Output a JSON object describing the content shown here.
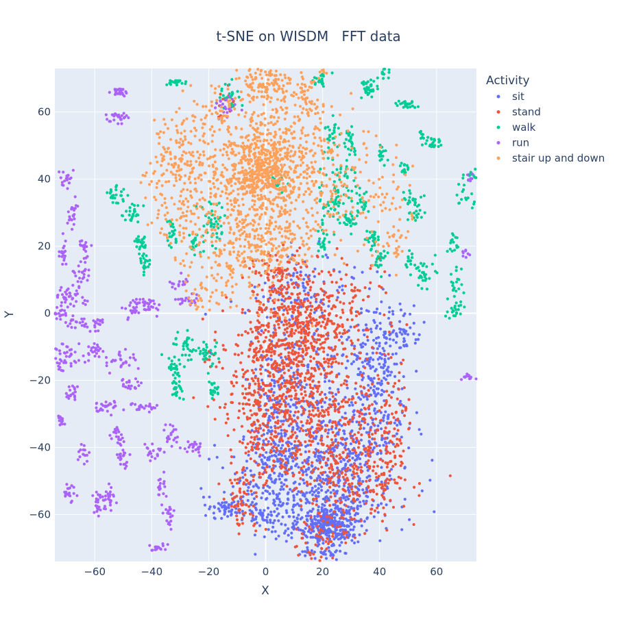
{
  "chart_data": {
    "type": "scatter",
    "title": "t-SNE on WISDM   FFT data",
    "xlabel": "X",
    "ylabel": "Y",
    "xlim": [
      -74,
      74
    ],
    "ylim": [
      -74,
      73
    ],
    "xticks": [
      -60,
      -40,
      -20,
      0,
      20,
      40,
      60
    ],
    "yticks": [
      -60,
      -40,
      -20,
      0,
      20,
      40,
      60
    ],
    "grid": true,
    "legend_title": "Activity",
    "legend_position": "right",
    "series": [
      {
        "name": "sit",
        "color": "#636efa",
        "clusters": [
          {
            "cx": 22,
            "cy": -63,
            "sx": 5,
            "sy": 3,
            "n": 320
          },
          {
            "cx": 18,
            "cy": -52,
            "sx": 14,
            "sy": 8,
            "n": 420
          },
          {
            "cx": 30,
            "cy": -40,
            "sx": 8,
            "sy": 10,
            "n": 180
          },
          {
            "cx": 40,
            "cy": -28,
            "sx": 5,
            "sy": 12,
            "n": 150
          },
          {
            "cx": 38,
            "cy": -10,
            "sx": 5,
            "sy": 10,
            "n": 110
          },
          {
            "cx": 48,
            "cy": -5,
            "sx": 4,
            "sy": 3,
            "n": 45
          },
          {
            "cx": -14,
            "cy": -58,
            "sx": 4,
            "sy": 2,
            "n": 60
          },
          {
            "cx": 5,
            "cy": -30,
            "sx": 6,
            "sy": 10,
            "n": 160
          },
          {
            "cx": 12,
            "cy": 5,
            "sx": 8,
            "sy": 6,
            "n": 110
          },
          {
            "cx": 2,
            "cy": -48,
            "sx": 5,
            "sy": 8,
            "n": 90
          },
          {
            "cx": 15,
            "cy": -25,
            "sx": 10,
            "sy": 18,
            "n": 180
          },
          {
            "cx": -2,
            "cy": -60,
            "sx": 2,
            "sy": 2,
            "n": 20
          },
          {
            "cx": 20,
            "cy": -72,
            "sx": 5,
            "sy": 1,
            "n": 30
          }
        ]
      },
      {
        "name": "stand",
        "color": "#ef553b",
        "clusters": [
          {
            "cx": 5,
            "cy": -15,
            "sx": 10,
            "sy": 10,
            "n": 520
          },
          {
            "cx": 18,
            "cy": 0,
            "sx": 10,
            "sy": 8,
            "n": 320
          },
          {
            "cx": 20,
            "cy": -35,
            "sx": 12,
            "sy": 10,
            "n": 430
          },
          {
            "cx": 35,
            "cy": -50,
            "sx": 8,
            "sy": 6,
            "n": 150
          },
          {
            "cx": 45,
            "cy": -35,
            "sx": 3,
            "sy": 8,
            "n": 60
          },
          {
            "cx": -8,
            "cy": -55,
            "sx": 3,
            "sy": 5,
            "n": 60
          },
          {
            "cx": 5,
            "cy": 10,
            "sx": 5,
            "sy": 4,
            "n": 90
          },
          {
            "cx": 20,
            "cy": -65,
            "sx": 5,
            "sy": 5,
            "n": 60
          },
          {
            "cx": -3,
            "cy": -35,
            "sx": 4,
            "sy": 8,
            "n": 100
          },
          {
            "cx": -14,
            "cy": 64,
            "sx": 2,
            "sy": 2,
            "n": 15
          }
        ]
      },
      {
        "name": "walk",
        "color": "#00cc96",
        "clusters": [
          {
            "cx": -32,
            "cy": 69,
            "sx": 1.5,
            "sy": 0.6,
            "n": 20
          },
          {
            "cx": -13,
            "cy": 65,
            "sx": 2,
            "sy": 2,
            "n": 25
          },
          {
            "cx": 20,
            "cy": 70,
            "sx": 1.5,
            "sy": 1,
            "n": 20
          },
          {
            "cx": 36,
            "cy": 67,
            "sx": 1.5,
            "sy": 1.5,
            "n": 30
          },
          {
            "cx": 42,
            "cy": 72,
            "sx": 1,
            "sy": 1.5,
            "n": 18
          },
          {
            "cx": 50,
            "cy": 62,
            "sx": 2,
            "sy": 0.6,
            "n": 22
          },
          {
            "cx": 59,
            "cy": 51,
            "sx": 2,
            "sy": 0.8,
            "n": 20
          },
          {
            "cx": 55,
            "cy": 53,
            "sx": 1,
            "sy": 1.5,
            "n": 10
          },
          {
            "cx": 41,
            "cy": 48,
            "sx": 1,
            "sy": 1.5,
            "n": 15
          },
          {
            "cx": 30,
            "cy": 51,
            "sx": 1,
            "sy": 2,
            "n": 25
          },
          {
            "cx": 23,
            "cy": 53,
            "sx": 1.5,
            "sy": 2,
            "n": 25
          },
          {
            "cx": 49,
            "cy": 43,
            "sx": 1,
            "sy": 1,
            "n": 15
          },
          {
            "cx": 51,
            "cy": 34,
            "sx": 2,
            "sy": 1,
            "n": 20
          },
          {
            "cx": 52,
            "cy": 30,
            "sx": 2,
            "sy": 1,
            "n": 15
          },
          {
            "cx": 23,
            "cy": 32,
            "sx": 3,
            "sy": 4,
            "n": 50
          },
          {
            "cx": 28,
            "cy": 40,
            "sx": 3,
            "sy": 4,
            "n": 30
          },
          {
            "cx": 34,
            "cy": 33,
            "sx": 1.5,
            "sy": 2,
            "n": 20
          },
          {
            "cx": 30,
            "cy": 28,
            "sx": 2,
            "sy": 1,
            "n": 25
          },
          {
            "cx": 37,
            "cy": 22,
            "sx": 1,
            "sy": 2,
            "n": 25
          },
          {
            "cx": 20,
            "cy": 21,
            "sx": 1,
            "sy": 1.5,
            "n": 20
          },
          {
            "cx": 40,
            "cy": 16,
            "sx": 1.5,
            "sy": 1.5,
            "n": 20
          },
          {
            "cx": 51,
            "cy": 16,
            "sx": 1,
            "sy": 2,
            "n": 15
          },
          {
            "cx": 55,
            "cy": 12,
            "sx": 3,
            "sy": 2,
            "n": 30
          },
          {
            "cx": 66,
            "cy": 21,
            "sx": 1,
            "sy": 2,
            "n": 15
          },
          {
            "cx": 72,
            "cy": 41,
            "sx": 1.5,
            "sy": 1,
            "n": 12
          },
          {
            "cx": 70,
            "cy": 35,
            "sx": 2,
            "sy": 1.5,
            "n": 15
          },
          {
            "cx": 67,
            "cy": 6,
            "sx": 1.5,
            "sy": 3,
            "n": 25
          },
          {
            "cx": 66,
            "cy": 0,
            "sx": 1,
            "sy": 1,
            "n": 15
          },
          {
            "cx": -53,
            "cy": 35,
            "sx": 1.5,
            "sy": 1.5,
            "n": 25
          },
          {
            "cx": -47,
            "cy": 30,
            "sx": 2,
            "sy": 1.5,
            "n": 25
          },
          {
            "cx": -44,
            "cy": 21,
            "sx": 1,
            "sy": 2,
            "n": 25
          },
          {
            "cx": -42,
            "cy": 15,
            "sx": 1,
            "sy": 1.5,
            "n": 20
          },
          {
            "cx": -33,
            "cy": 24,
            "sx": 1,
            "sy": 2,
            "n": 20
          },
          {
            "cx": -25,
            "cy": 21,
            "sx": 1,
            "sy": 1.5,
            "n": 20
          },
          {
            "cx": -19,
            "cy": 28,
            "sx": 2,
            "sy": 4,
            "n": 45
          },
          {
            "cx": -27,
            "cy": -10,
            "sx": 3,
            "sy": 2,
            "n": 35
          },
          {
            "cx": -32,
            "cy": -16,
            "sx": 1.5,
            "sy": 1.5,
            "n": 25
          },
          {
            "cx": -31,
            "cy": -22,
            "sx": 1,
            "sy": 2,
            "n": 25
          },
          {
            "cx": -20,
            "cy": -12,
            "sx": 1.5,
            "sy": 2,
            "n": 25
          },
          {
            "cx": -18,
            "cy": -23,
            "sx": 1,
            "sy": 1.5,
            "n": 20
          },
          {
            "cx": 3,
            "cy": 38,
            "sx": 2,
            "sy": 2,
            "n": 20
          }
        ]
      },
      {
        "name": "run",
        "color": "#ab63fa",
        "clusters": [
          {
            "cx": -51,
            "cy": 66,
            "sx": 1.5,
            "sy": 0.6,
            "n": 25
          },
          {
            "cx": -52,
            "cy": 58,
            "sx": 2,
            "sy": 0.8,
            "n": 25
          },
          {
            "cx": -14,
            "cy": 62,
            "sx": 2,
            "sy": 2,
            "n": 20
          },
          {
            "cx": -70,
            "cy": 40,
            "sx": 1,
            "sy": 2,
            "n": 20
          },
          {
            "cx": -68,
            "cy": 29,
            "sx": 1,
            "sy": 2,
            "n": 20
          },
          {
            "cx": -71,
            "cy": 18,
            "sx": 1,
            "sy": 2,
            "n": 18
          },
          {
            "cx": -64,
            "cy": 20,
            "sx": 1,
            "sy": 2,
            "n": 20
          },
          {
            "cx": -64,
            "cy": 11,
            "sx": 2,
            "sy": 1.5,
            "n": 20
          },
          {
            "cx": -68,
            "cy": 5,
            "sx": 3,
            "sy": 2,
            "n": 40
          },
          {
            "cx": -72,
            "cy": 0,
            "sx": 1.5,
            "sy": 1,
            "n": 20
          },
          {
            "cx": -66,
            "cy": -3,
            "sx": 2,
            "sy": 1,
            "n": 20
          },
          {
            "cx": -59,
            "cy": -3,
            "sx": 1,
            "sy": 1,
            "n": 20
          },
          {
            "cx": -45,
            "cy": 1,
            "sx": 3,
            "sy": 2,
            "n": 30
          },
          {
            "cx": -42,
            "cy": 3,
            "sx": 3,
            "sy": 1,
            "n": 25
          },
          {
            "cx": -30,
            "cy": 9,
            "sx": 2,
            "sy": 1,
            "n": 15
          },
          {
            "cx": -28,
            "cy": 4,
            "sx": 2,
            "sy": 1,
            "n": 20
          },
          {
            "cx": -69,
            "cy": -11,
            "sx": 3,
            "sy": 1,
            "n": 20
          },
          {
            "cx": -70,
            "cy": -15,
            "sx": 3,
            "sy": 1,
            "n": 25
          },
          {
            "cx": -60,
            "cy": -11,
            "sx": 1.5,
            "sy": 1,
            "n": 20
          },
          {
            "cx": -51,
            "cy": -14,
            "sx": 3,
            "sy": 1.5,
            "n": 30
          },
          {
            "cx": -47,
            "cy": -21,
            "sx": 2,
            "sy": 1,
            "n": 20
          },
          {
            "cx": -68,
            "cy": -24,
            "sx": 1,
            "sy": 1.5,
            "n": 20
          },
          {
            "cx": -72,
            "cy": -32,
            "sx": 1,
            "sy": 0.8,
            "n": 15
          },
          {
            "cx": -56,
            "cy": -28,
            "sx": 2,
            "sy": 1,
            "n": 25
          },
          {
            "cx": -44,
            "cy": -28,
            "sx": 3,
            "sy": 0.8,
            "n": 25
          },
          {
            "cx": -52,
            "cy": -37,
            "sx": 1.5,
            "sy": 1.5,
            "n": 20
          },
          {
            "cx": -50,
            "cy": -43,
            "sx": 1,
            "sy": 2,
            "n": 20
          },
          {
            "cx": -40,
            "cy": -41,
            "sx": 1.5,
            "sy": 1,
            "n": 20
          },
          {
            "cx": -33,
            "cy": -36,
            "sx": 1.5,
            "sy": 2,
            "n": 20
          },
          {
            "cx": -25,
            "cy": -40,
            "sx": 1.5,
            "sy": 1,
            "n": 20
          },
          {
            "cx": -64,
            "cy": -41,
            "sx": 1,
            "sy": 1.5,
            "n": 15
          },
          {
            "cx": -69,
            "cy": -53,
            "sx": 1,
            "sy": 2,
            "n": 20
          },
          {
            "cx": -55,
            "cy": -55,
            "sx": 1.5,
            "sy": 2,
            "n": 30
          },
          {
            "cx": -59,
            "cy": -57,
            "sx": 1,
            "sy": 2,
            "n": 20
          },
          {
            "cx": -37,
            "cy": -52,
            "sx": 1,
            "sy": 1.5,
            "n": 15
          },
          {
            "cx": -34,
            "cy": -60,
            "sx": 1,
            "sy": 2,
            "n": 20
          },
          {
            "cx": -38,
            "cy": -70,
            "sx": 1.5,
            "sy": 1,
            "n": 20
          },
          {
            "cx": 72,
            "cy": -19,
            "sx": 1.5,
            "sy": 0.6,
            "n": 15
          },
          {
            "cx": 70,
            "cy": 18,
            "sx": 1,
            "sy": 1,
            "n": 8
          },
          {
            "cx": 72,
            "cy": 40,
            "sx": 1,
            "sy": 1,
            "n": 6
          }
        ]
      },
      {
        "name": "stair up and down",
        "color": "#ffa15a",
        "clusters": [
          {
            "cx": -2,
            "cy": 42,
            "sx": 6,
            "sy": 5,
            "n": 320
          },
          {
            "cx": -5,
            "cy": 35,
            "sx": 12,
            "sy": 14,
            "n": 620
          },
          {
            "cx": 15,
            "cy": 40,
            "sx": 10,
            "sy": 10,
            "n": 220
          },
          {
            "cx": -30,
            "cy": 42,
            "sx": 6,
            "sy": 10,
            "n": 220
          },
          {
            "cx": 0,
            "cy": 70,
            "sx": 5,
            "sy": 3,
            "n": 100
          },
          {
            "cx": 5,
            "cy": 60,
            "sx": 8,
            "sy": 8,
            "n": 140
          },
          {
            "cx": -5,
            "cy": 18,
            "sx": 10,
            "sy": 3,
            "n": 90
          },
          {
            "cx": -22,
            "cy": 5,
            "sx": 3,
            "sy": 3,
            "n": 30
          },
          {
            "cx": -18,
            "cy": 60,
            "sx": 3,
            "sy": 3,
            "n": 30
          },
          {
            "cx": 40,
            "cy": 35,
            "sx": 6,
            "sy": 8,
            "n": 60
          },
          {
            "cx": 15,
            "cy": 64,
            "sx": 2,
            "sy": 3,
            "n": 20
          },
          {
            "cx": 45,
            "cy": 20,
            "sx": 3,
            "sy": 3,
            "n": 25
          },
          {
            "cx": 20,
            "cy": 72,
            "sx": 1,
            "sy": 1,
            "n": 6
          },
          {
            "cx": -12,
            "cy": 8,
            "sx": 3,
            "sy": 3,
            "n": 20
          }
        ]
      }
    ]
  }
}
